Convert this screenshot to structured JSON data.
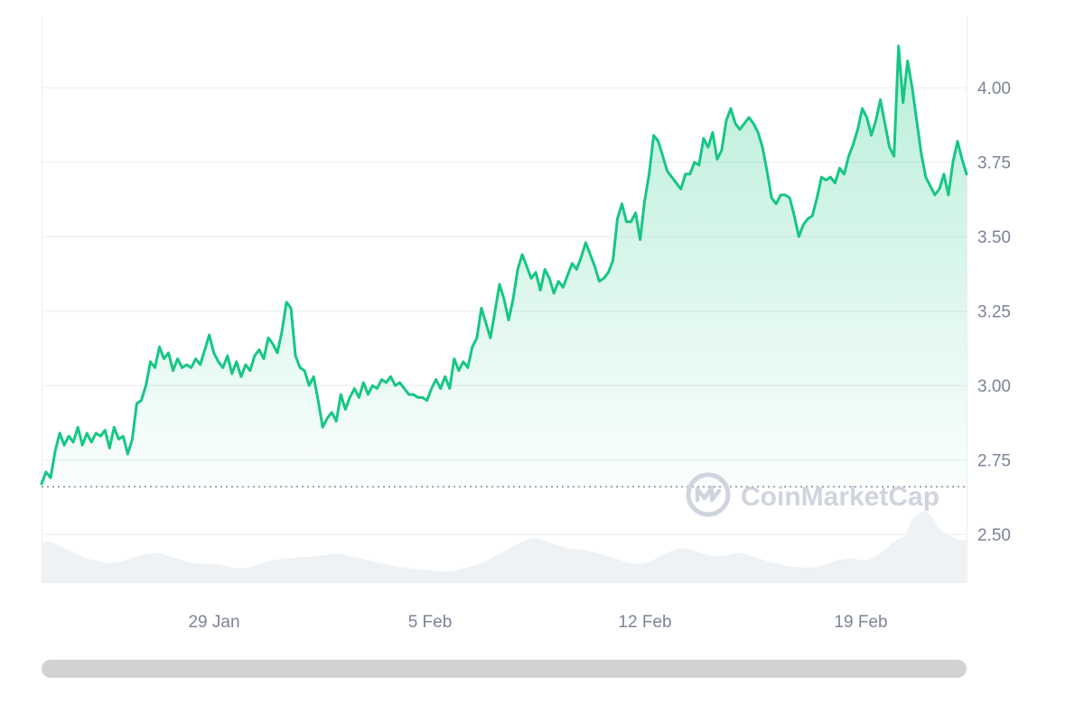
{
  "chart_data": {
    "type": "area",
    "x_ticks": [
      "29 Jan",
      "5 Feb",
      "12 Feb",
      "19 Feb"
    ],
    "y_ticks": [
      "4.00",
      "3.75",
      "3.50",
      "3.25",
      "3.00",
      "2.75",
      "2.50"
    ],
    "ylim": [
      2.34,
      4.24
    ],
    "baseline": 2.66,
    "grid": true,
    "series": [
      {
        "values": [
          2.67,
          2.71,
          2.69,
          2.78,
          2.84,
          2.8,
          2.83,
          2.81,
          2.86,
          2.8,
          2.84,
          2.81,
          2.84,
          2.83,
          2.85,
          2.79,
          2.86,
          2.82,
          2.83,
          2.77,
          2.82,
          2.94,
          2.95,
          3.0,
          3.08,
          3.06,
          3.13,
          3.09,
          3.11,
          3.05,
          3.09,
          3.06,
          3.07,
          3.06,
          3.09,
          3.07,
          3.12,
          3.17,
          3.11,
          3.08,
          3.06,
          3.1,
          3.04,
          3.08,
          3.03,
          3.07,
          3.05,
          3.1,
          3.12,
          3.09,
          3.16,
          3.14,
          3.11,
          3.18,
          3.28,
          3.26,
          3.1,
          3.06,
          3.05,
          3.0,
          3.03,
          2.95,
          2.86,
          2.89,
          2.91,
          2.88,
          2.97,
          2.92,
          2.96,
          2.99,
          2.96,
          3.01,
          2.97,
          3.0,
          2.99,
          3.02,
          3.01,
          3.03,
          3.0,
          3.01,
          2.99,
          2.97,
          2.97,
          2.96,
          2.96,
          2.95,
          2.99,
          3.02,
          2.99,
          3.03,
          2.99,
          3.09,
          3.05,
          3.08,
          3.06,
          3.13,
          3.16,
          3.26,
          3.21,
          3.16,
          3.25,
          3.34,
          3.29,
          3.22,
          3.29,
          3.39,
          3.44,
          3.4,
          3.36,
          3.38,
          3.32,
          3.39,
          3.36,
          3.31,
          3.35,
          3.33,
          3.37,
          3.41,
          3.39,
          3.43,
          3.48,
          3.44,
          3.4,
          3.35,
          3.36,
          3.38,
          3.42,
          3.56,
          3.61,
          3.55,
          3.55,
          3.58,
          3.49,
          3.62,
          3.71,
          3.84,
          3.82,
          3.77,
          3.72,
          3.7,
          3.68,
          3.66,
          3.71,
          3.71,
          3.75,
          3.74,
          3.83,
          3.8,
          3.85,
          3.76,
          3.79,
          3.89,
          3.93,
          3.88,
          3.86,
          3.88,
          3.9,
          3.88,
          3.85,
          3.8,
          3.72,
          3.63,
          3.61,
          3.64,
          3.64,
          3.63,
          3.57,
          3.5,
          3.54,
          3.56,
          3.57,
          3.63,
          3.7,
          3.69,
          3.7,
          3.68,
          3.73,
          3.71,
          3.77,
          3.81,
          3.86,
          3.93,
          3.9,
          3.84,
          3.89,
          3.96,
          3.88,
          3.8,
          3.77,
          4.14,
          3.95,
          4.09,
          4.0,
          3.89,
          3.78,
          3.7,
          3.67,
          3.64,
          3.66,
          3.71,
          3.64,
          3.75,
          3.82,
          3.76,
          3.71
        ]
      }
    ],
    "volume": [
      0.52,
      0.53,
      0.5,
      0.46,
      0.41,
      0.37,
      0.33,
      0.3,
      0.28,
      0.26,
      0.25,
      0.26,
      0.28,
      0.31,
      0.34,
      0.36,
      0.37,
      0.38,
      0.36,
      0.33,
      0.3,
      0.27,
      0.25,
      0.24,
      0.24,
      0.24,
      0.23,
      0.21,
      0.19,
      0.18,
      0.19,
      0.21,
      0.24,
      0.27,
      0.29,
      0.3,
      0.31,
      0.32,
      0.33,
      0.33,
      0.34,
      0.35,
      0.36,
      0.37,
      0.36,
      0.34,
      0.32,
      0.3,
      0.28,
      0.26,
      0.24,
      0.22,
      0.2,
      0.19,
      0.18,
      0.17,
      0.16,
      0.15,
      0.14,
      0.14,
      0.15,
      0.17,
      0.19,
      0.21,
      0.24,
      0.28,
      0.33,
      0.38,
      0.43,
      0.48,
      0.52,
      0.56,
      0.58,
      0.56,
      0.52,
      0.49,
      0.46,
      0.44,
      0.43,
      0.42,
      0.4,
      0.38,
      0.36,
      0.33,
      0.3,
      0.27,
      0.25,
      0.24,
      0.25,
      0.28,
      0.32,
      0.37,
      0.41,
      0.44,
      0.44,
      0.42,
      0.39,
      0.36,
      0.34,
      0.34,
      0.35,
      0.37,
      0.38,
      0.36,
      0.33,
      0.3,
      0.27,
      0.25,
      0.23,
      0.21,
      0.2,
      0.19,
      0.19,
      0.2,
      0.22,
      0.25,
      0.28,
      0.3,
      0.31,
      0.3,
      0.28,
      0.3,
      0.35,
      0.42,
      0.5,
      0.56,
      0.6,
      0.82,
      0.9,
      0.93,
      0.85,
      0.7,
      0.62,
      0.58,
      0.55,
      0.54
    ]
  },
  "watermark": {
    "text": "CoinMarketCap"
  },
  "colors": {
    "line": "#16c784",
    "grid": "#eff2f5",
    "volume": "#eff2f5",
    "baseline": "#808a9d",
    "tick": "#7b8496",
    "scrollbar": "#d2d2d2"
  }
}
